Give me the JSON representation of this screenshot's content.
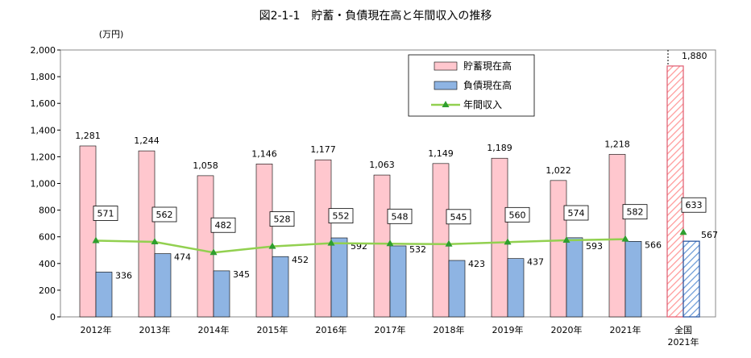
{
  "chart_data": {
    "type": "bar",
    "title": "図2-1-1　貯蓄・負債現在高と年間収入の推移",
    "unit": "(万円)",
    "categories": [
      "2012年",
      "2013年",
      "2014年",
      "2015年",
      "2016年",
      "2017年",
      "2018年",
      "2019年",
      "2020年",
      "2021年",
      "全国\n2021年"
    ],
    "ylim": [
      0,
      2000
    ],
    "yticks": [
      "0",
      "200",
      "400",
      "600",
      "800",
      "1,000",
      "1,200",
      "1,400",
      "1,600",
      "1,800",
      "2,000"
    ],
    "series": [
      {
        "name": "貯蓄現在高",
        "kind": "bar",
        "color": "#FFC7CE",
        "values": [
          1281,
          1244,
          1058,
          1146,
          1177,
          1063,
          1149,
          1189,
          1022,
          1218,
          1880
        ],
        "labels": [
          "1,281",
          "1,244",
          "1,058",
          "1,146",
          "1,177",
          "1,063",
          "1,149",
          "1,189",
          "1,022",
          "1,218",
          "1,880"
        ]
      },
      {
        "name": "負債現在高",
        "kind": "bar",
        "color": "#8EB4E3",
        "values": [
          336,
          474,
          345,
          452,
          592,
          532,
          423,
          437,
          593,
          566,
          567
        ],
        "labels": [
          "336",
          "474",
          "345",
          "452",
          "592",
          "532",
          "423",
          "437",
          "593",
          "566",
          "567"
        ]
      },
      {
        "name": "年間収入",
        "kind": "line",
        "color": "#92D050",
        "values": [
          571,
          562,
          482,
          528,
          552,
          548,
          545,
          560,
          574,
          582,
          633
        ],
        "labels": [
          "571",
          "562",
          "482",
          "528",
          "552",
          "548",
          "545",
          "560",
          "574",
          "582",
          "633"
        ]
      }
    ],
    "national_bars_hatched": true,
    "legend_position": "top-right"
  }
}
